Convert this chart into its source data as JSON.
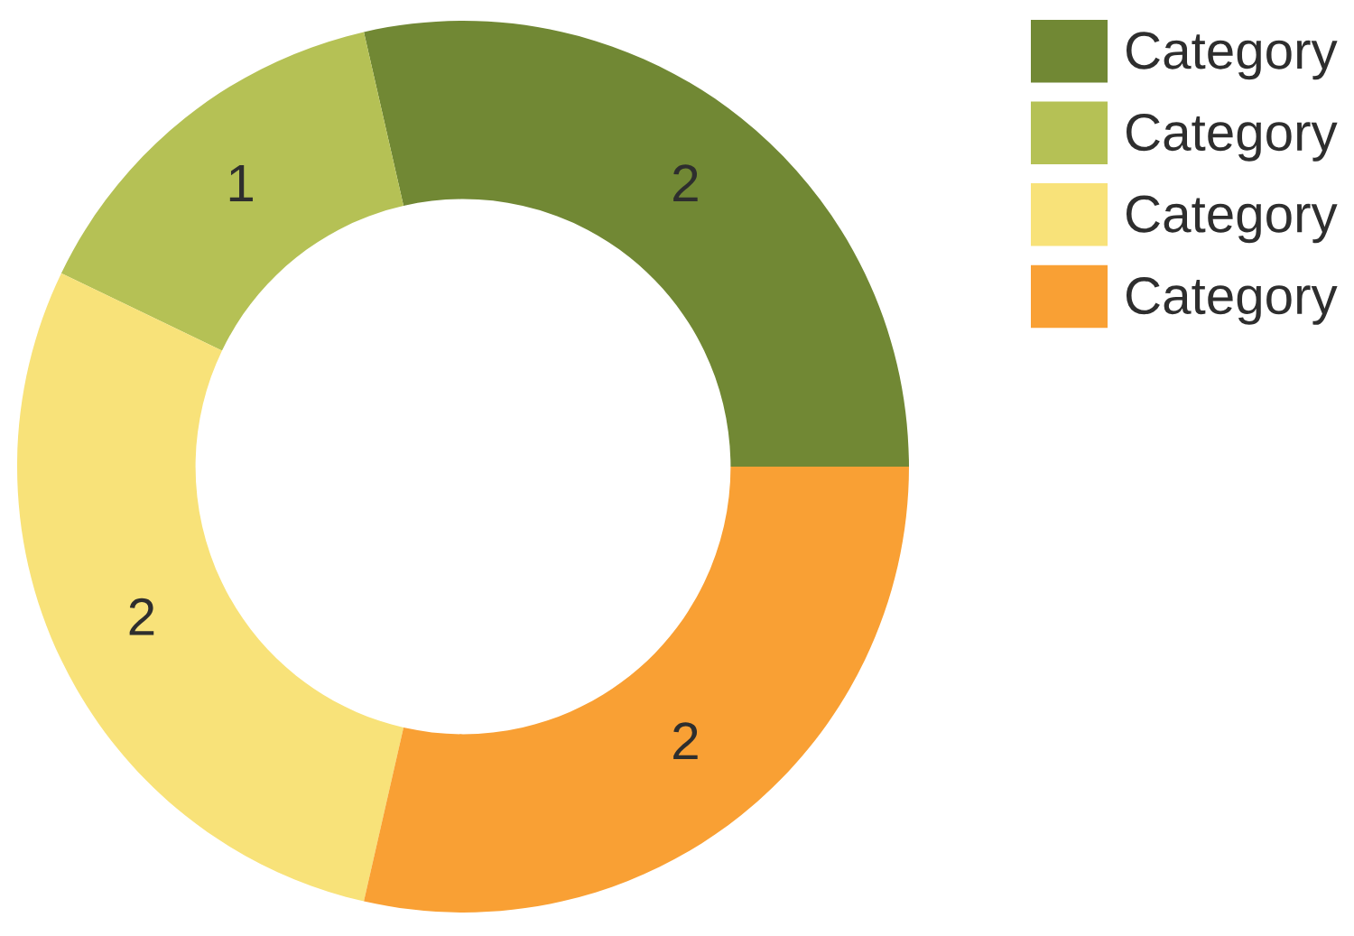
{
  "chart_data": {
    "type": "donut",
    "categories": [
      "Category",
      "Category",
      "Category",
      "Category"
    ],
    "values": [
      2,
      1,
      2,
      2
    ],
    "colors": [
      "#718834",
      "#b5c155",
      "#f8e279",
      "#f9a034"
    ],
    "data_labels": true,
    "legend": "top right"
  }
}
